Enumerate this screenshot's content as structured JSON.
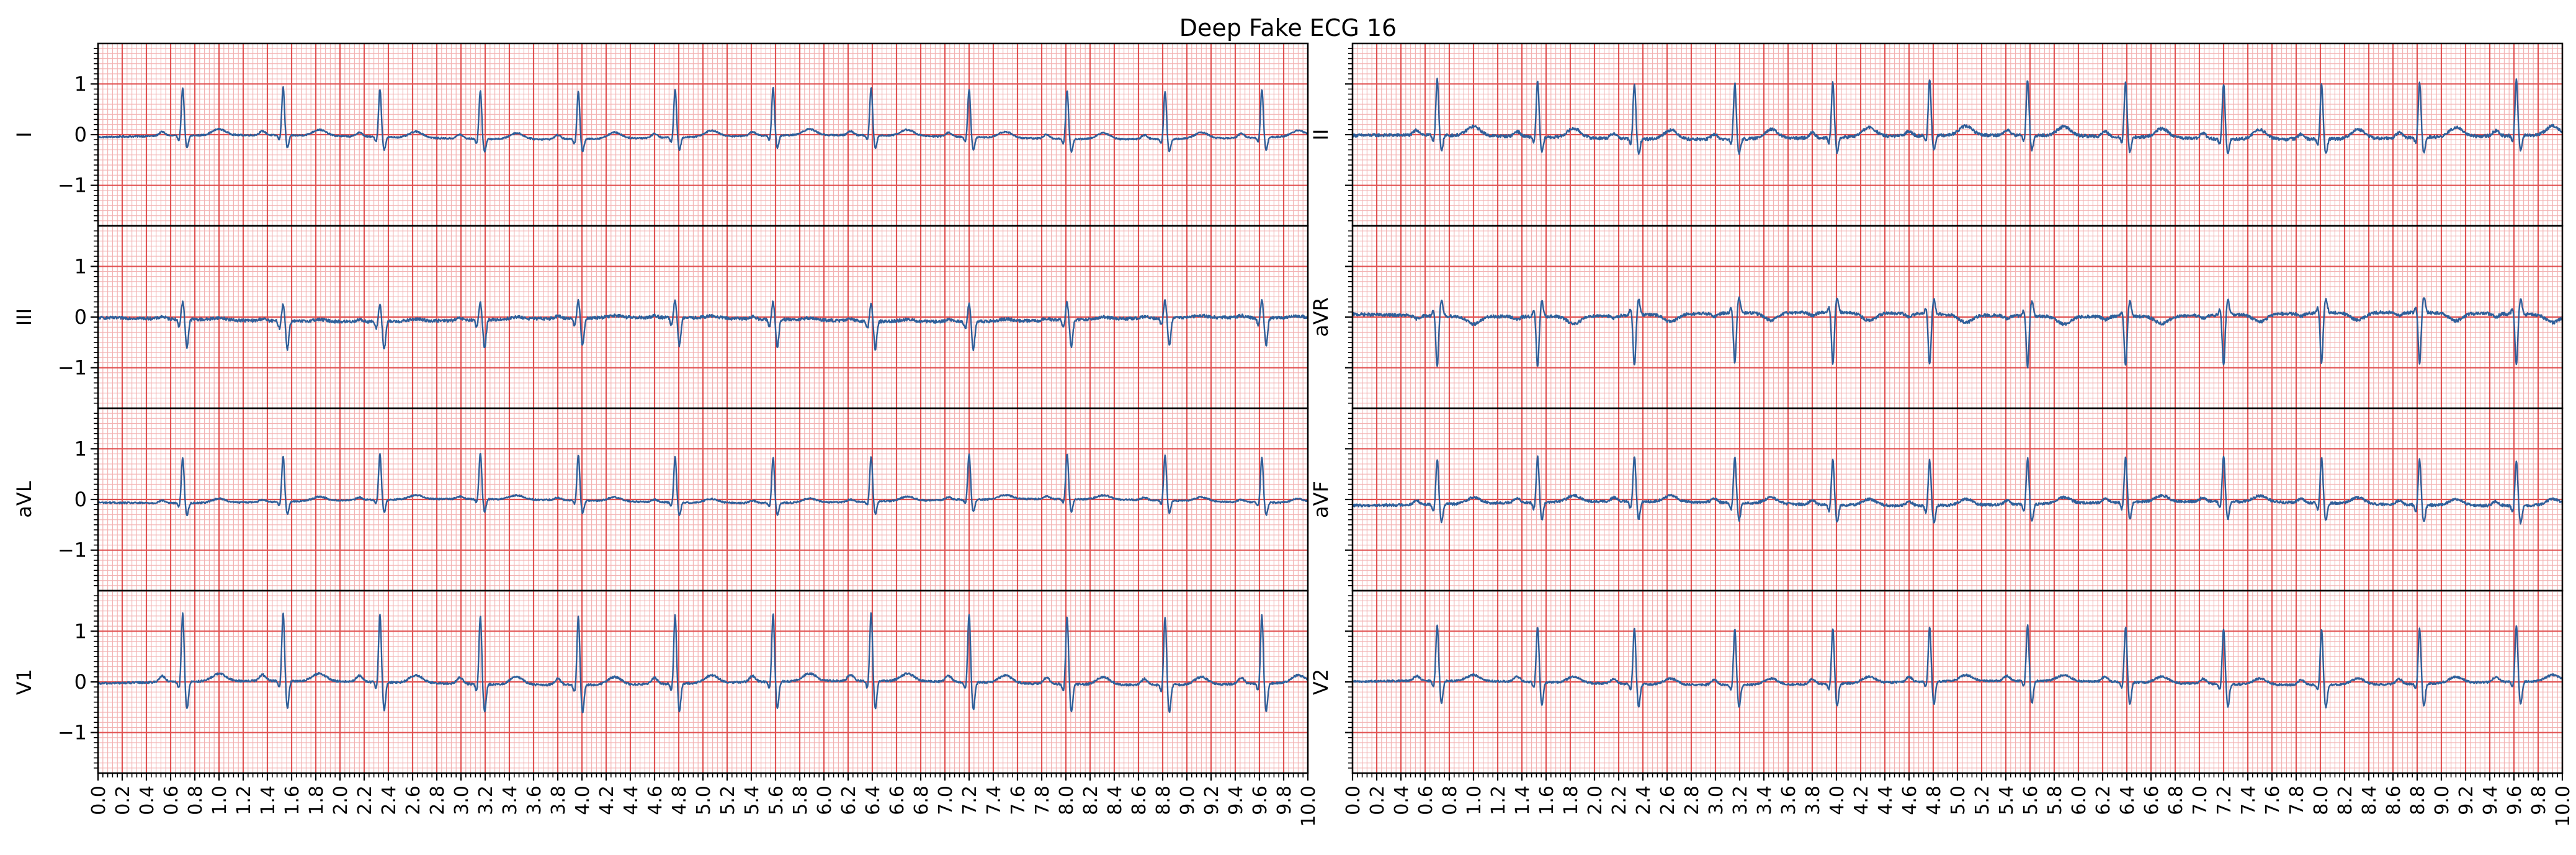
{
  "figure": {
    "title": "Deep Fake ECG 16",
    "colors": {
      "trace": "#2f5f9a",
      "major_grid": "#e15353",
      "minor_grid": "#f3b3b3",
      "frame": "#000000",
      "background": "#ffffff"
    }
  },
  "chart_data": {
    "type": "line",
    "x_unit": "s",
    "xlim": [
      0,
      10
    ],
    "ylim": [
      -1.8,
      1.8
    ],
    "x_ticks": [
      "0.0",
      "0.2",
      "0.4",
      "0.6",
      "0.8",
      "1.0",
      "1.2",
      "1.4",
      "1.6",
      "1.8",
      "2.0",
      "2.2",
      "2.4",
      "2.6",
      "2.8",
      "3.0",
      "3.2",
      "3.4",
      "3.6",
      "3.8",
      "4.0",
      "4.2",
      "4.4",
      "4.6",
      "4.8",
      "5.0",
      "5.2",
      "5.4",
      "5.6",
      "5.8",
      "6.0",
      "6.2",
      "6.4",
      "6.6",
      "6.8",
      "7.0",
      "7.2",
      "7.4",
      "7.6",
      "7.8",
      "8.0",
      "8.2",
      "8.4",
      "8.6",
      "8.8",
      "9.0",
      "9.2",
      "9.4",
      "9.6",
      "9.8",
      "10.0"
    ],
    "y_ticks": [
      "1",
      "0",
      "−1"
    ],
    "y_tick_values": [
      1,
      0,
      -1
    ],
    "grid": {
      "major_x": 0.2,
      "minor_x": 0.04,
      "major_y": 1.0,
      "minor_y": 0.1
    },
    "beat_times": [
      0.7,
      1.53,
      2.33,
      3.16,
      3.97,
      4.77,
      5.58,
      6.39,
      7.2,
      8.01,
      8.82,
      9.62
    ],
    "leads": [
      {
        "name": "I",
        "column": 0,
        "row": 0,
        "baseline": -0.05,
        "p": 0.08,
        "q": -0.1,
        "r": 0.95,
        "s": -0.25,
        "t": 0.12,
        "noise": 0.015
      },
      {
        "name": "II",
        "column": 1,
        "row": 0,
        "baseline": -0.05,
        "p": 0.1,
        "q": -0.12,
        "r": 1.1,
        "s": -0.3,
        "t": 0.18,
        "noise": 0.03
      },
      {
        "name": "III",
        "column": 0,
        "row": 1,
        "baseline": -0.05,
        "p": 0.04,
        "q": -0.15,
        "r": 0.35,
        "s": -0.55,
        "t": 0.04,
        "noise": 0.03
      },
      {
        "name": "aVR",
        "column": 1,
        "row": 1,
        "baseline": 0.05,
        "p": -0.06,
        "q": 0.12,
        "r": -1.0,
        "s": 0.3,
        "t": -0.15,
        "noise": 0.03
      },
      {
        "name": "aVL",
        "column": 0,
        "row": 2,
        "baseline": -0.03,
        "p": 0.05,
        "q": -0.08,
        "r": 0.9,
        "s": -0.25,
        "t": 0.08,
        "noise": 0.015
      },
      {
        "name": "aVF",
        "column": 1,
        "row": 2,
        "baseline": -0.08,
        "p": 0.08,
        "q": -0.15,
        "r": 0.9,
        "s": -0.35,
        "t": 0.12,
        "noise": 0.025
      },
      {
        "name": "V1",
        "column": 0,
        "row": 3,
        "baseline": -0.02,
        "p": 0.12,
        "q": -0.15,
        "r": 1.35,
        "s": -0.55,
        "t": 0.15,
        "noise": 0.02
      },
      {
        "name": "V2",
        "column": 1,
        "row": 3,
        "baseline": -0.02,
        "p": 0.1,
        "q": -0.12,
        "r": 1.1,
        "s": -0.45,
        "t": 0.12,
        "noise": 0.02
      }
    ]
  }
}
